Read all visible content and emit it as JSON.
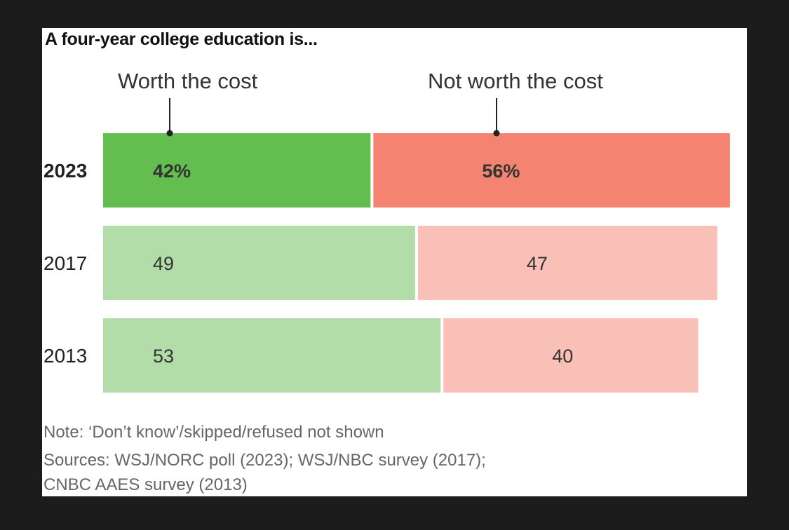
{
  "title": "A four-year college education is...",
  "legend": {
    "worth": "Worth the cost",
    "not_worth": "Not worth the cost"
  },
  "notes": [
    "Note: ‘Don’t know’/skipped/refused not shown",
    "Sources: WSJ/NORC poll (2023); WSJ/NBC survey (2017);",
    "CNBC AAES survey (2013)"
  ],
  "colors": {
    "worth_highlight": "#63bd4f",
    "worth": "#b2dca8",
    "not_worth_highlight": "#f48371",
    "not_worth": "#f8c0b6"
  },
  "chart_data": {
    "type": "bar",
    "orientation": "horizontal-stacked",
    "title": "A four-year college education is...",
    "categories": [
      "2023",
      "2017",
      "2013"
    ],
    "highlight_category": "2023",
    "series": [
      {
        "name": "Worth the cost",
        "values": [
          42,
          49,
          53
        ],
        "labels": [
          "42%",
          "49",
          "53"
        ]
      },
      {
        "name": "Not worth the cost",
        "values": [
          56,
          47,
          40
        ],
        "labels": [
          "56%",
          "47",
          "40"
        ]
      }
    ],
    "xlim": [
      0,
      100
    ],
    "grid": false
  }
}
